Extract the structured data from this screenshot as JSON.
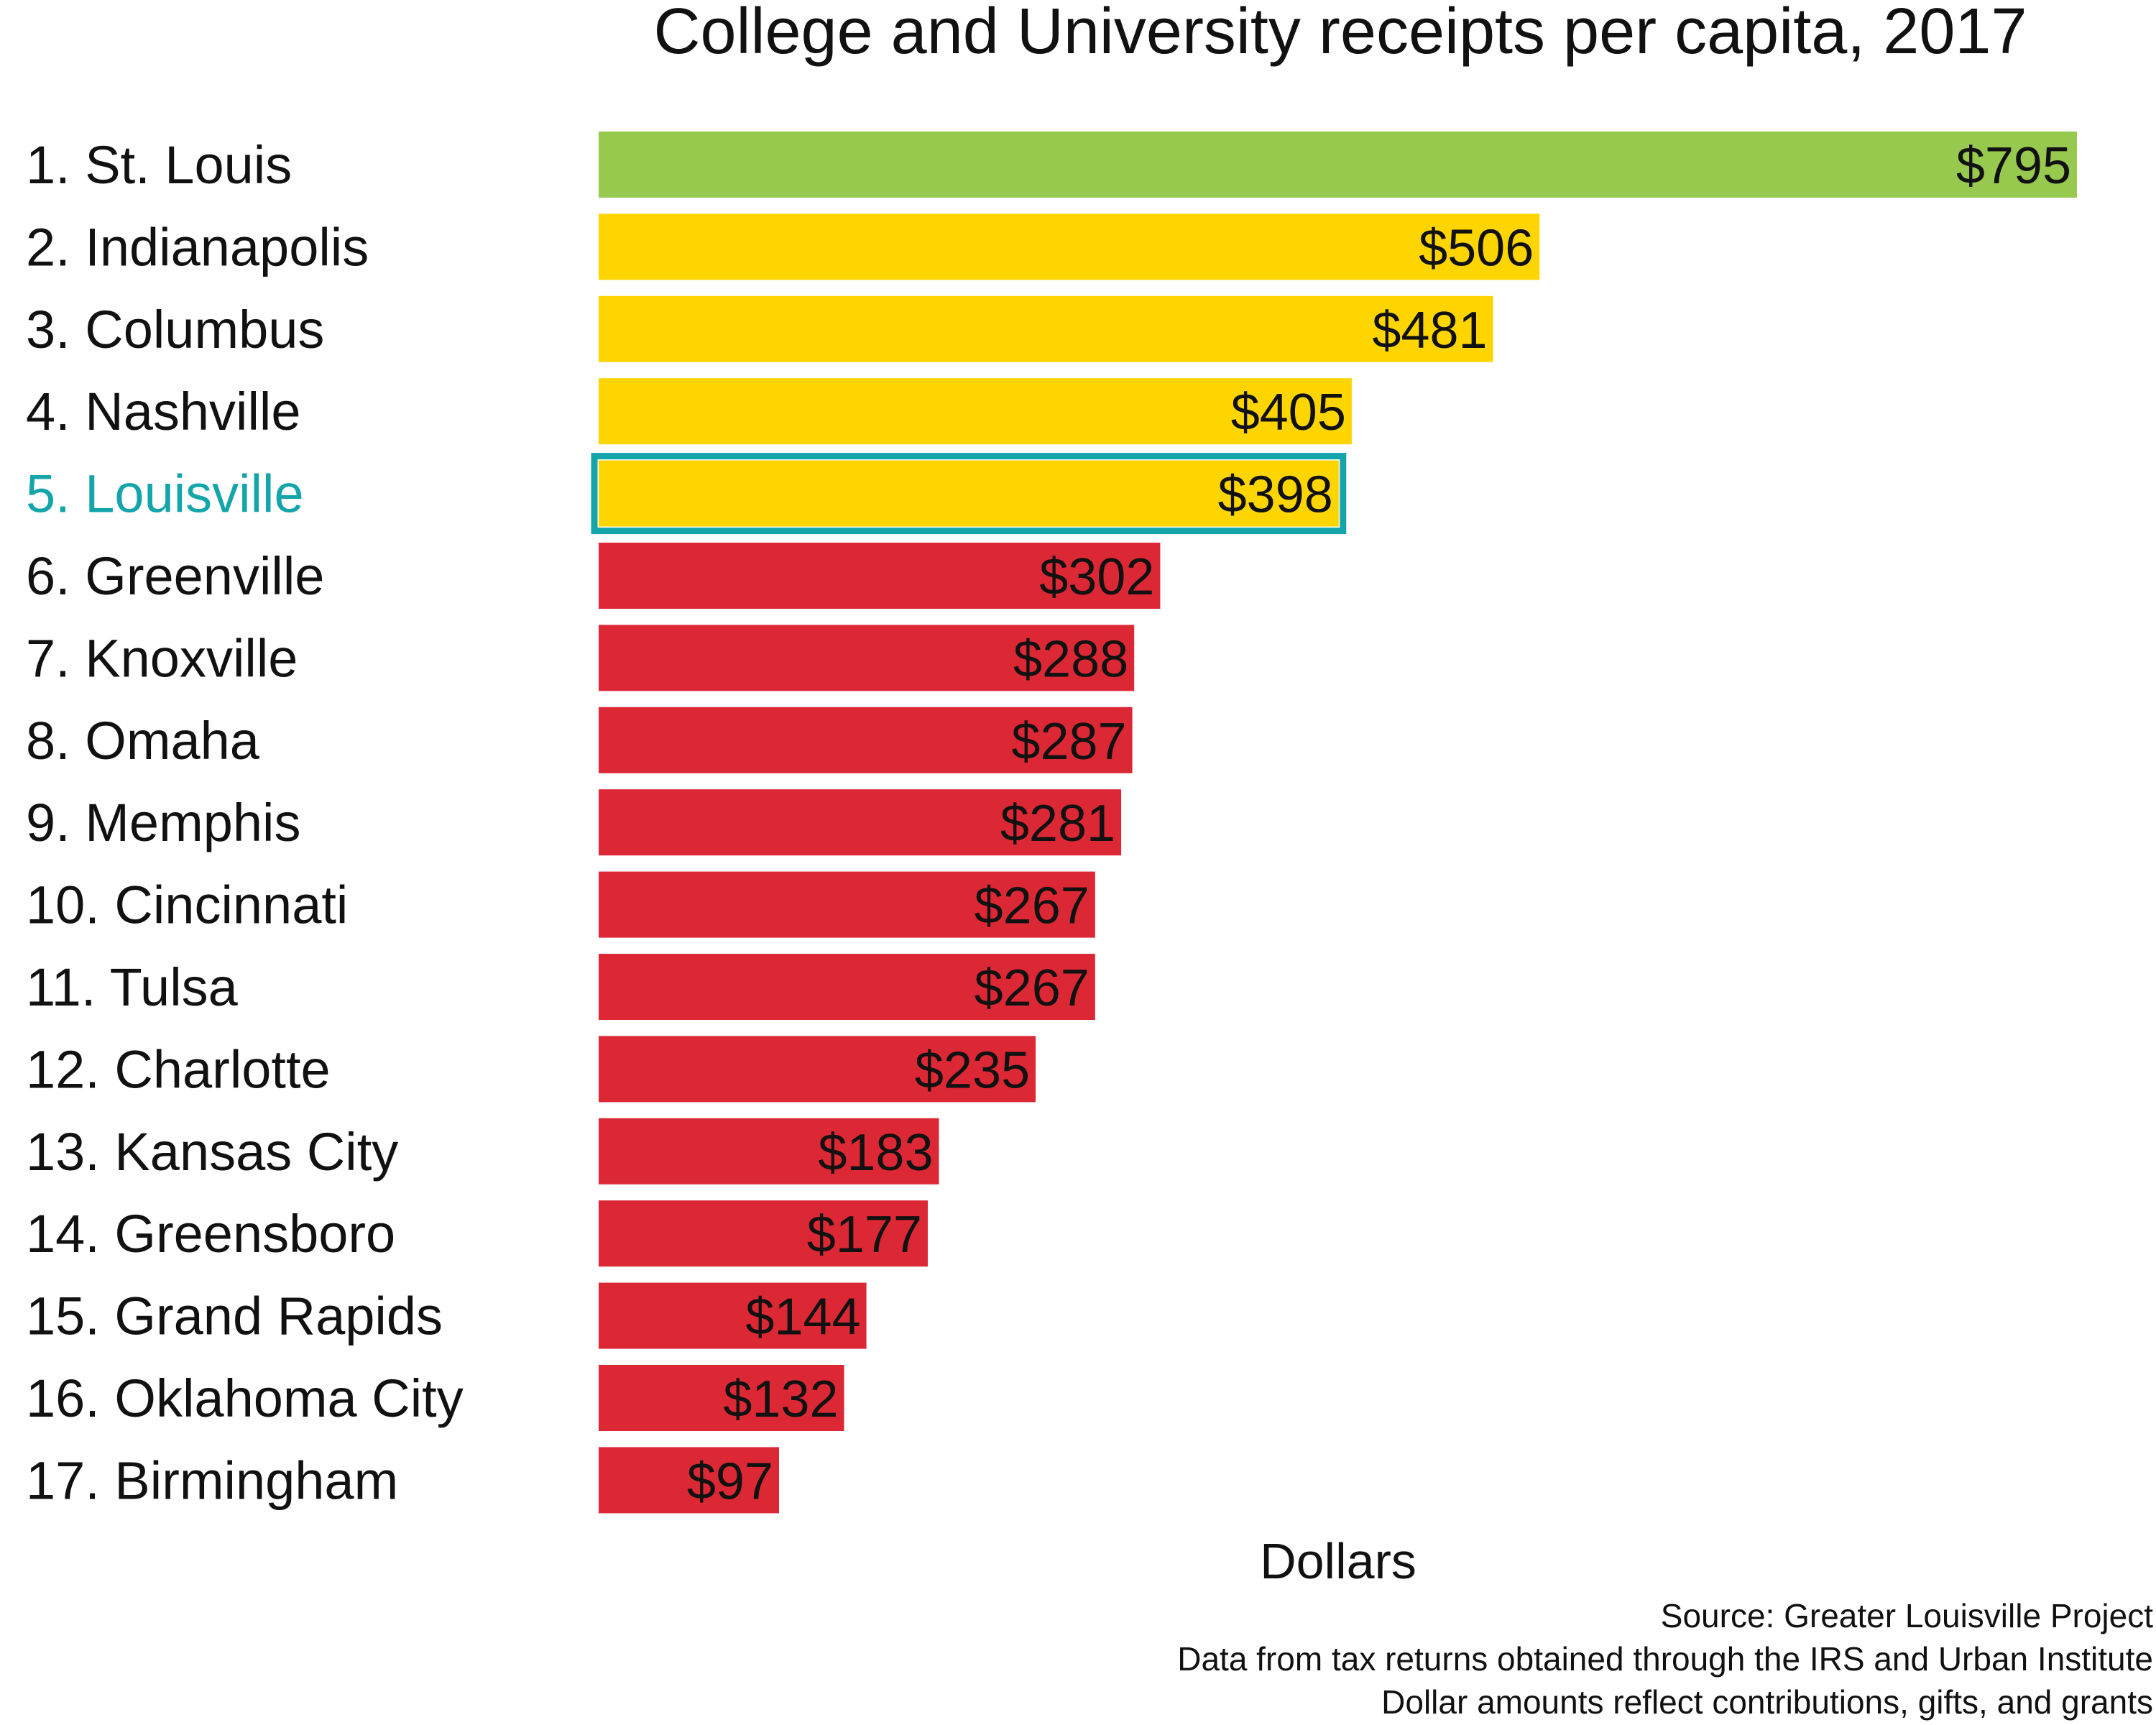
{
  "chart_data": {
    "type": "bar",
    "orientation": "horizontal",
    "title": "College and University receipts per capita, 2017",
    "xlabel": "Dollars",
    "ylabel": "",
    "grid": false,
    "legend": "none",
    "xlim": [
      0,
      795
    ],
    "categories": [
      "1. St. Louis",
      "2. Indianapolis",
      "3. Columbus",
      "4. Nashville",
      "5. Louisville",
      "6. Greenville",
      "7. Knoxville",
      "8. Omaha",
      "9. Memphis",
      "10. Cincinnati",
      "11. Tulsa",
      "12. Charlotte",
      "13. Kansas City",
      "14. Greensboro",
      "15. Grand Rapids",
      "16. Oklahoma City",
      "17. Birmingham"
    ],
    "values": [
      795,
      506,
      481,
      405,
      398,
      302,
      288,
      287,
      281,
      267,
      267,
      235,
      183,
      177,
      144,
      132,
      97
    ],
    "value_labels": [
      "$795",
      "$506",
      "$481",
      "$405",
      "$398",
      "$302",
      "$288",
      "$287",
      "$281",
      "$267",
      "$267",
      "$235",
      "$183",
      "$177",
      "$144",
      "$132",
      "$97"
    ],
    "bar_colors": [
      "#97c94f",
      "#ffd500",
      "#ffd500",
      "#ffd500",
      "#ffd500",
      "#dc2834",
      "#dc2834",
      "#dc2834",
      "#dc2834",
      "#dc2834",
      "#dc2834",
      "#dc2834",
      "#dc2834",
      "#dc2834",
      "#dc2834",
      "#dc2834",
      "#dc2834"
    ],
    "highlight": {
      "category": "5. Louisville",
      "label_color": "#14a5ab",
      "outline_color": "#14a5ab"
    },
    "notes": [
      "Source: Greater Louisville Project",
      "Data from tax returns obtained through the IRS and Urban Institute",
      "Dollar amounts reflect contributions, gifts, and grants"
    ]
  }
}
